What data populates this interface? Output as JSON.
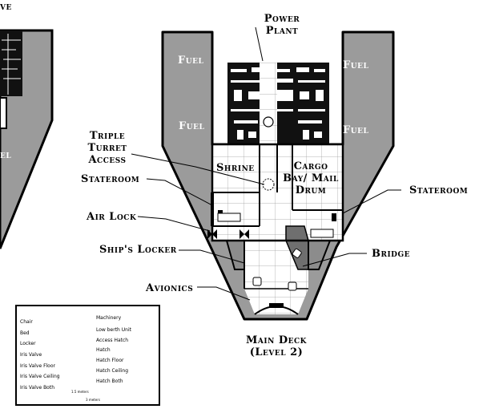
{
  "labels": {
    "fuel": "Fuel",
    "power_plant": [
      "Power",
      "Plant"
    ],
    "triple_turret_access": [
      "Triple",
      "Turret",
      "Access"
    ],
    "stateroom": "Stateroom",
    "air_lock": "Air Lock",
    "ships_locker": "Ship's Locker",
    "avionics": "Avionics",
    "shrine": "Shrine",
    "cargo": [
      "Cargo",
      "Bay/ Mail",
      "Drum"
    ],
    "bridge": "Bridge",
    "left_partial_top": "ve",
    "left_partial_fuel": "el",
    "deck_title": [
      "Main Deck",
      "(Level 2)"
    ]
  },
  "legend": {
    "left": [
      {
        "label": "Chair",
        "icon": "chair-icon"
      },
      {
        "label": "Bed",
        "icon": "bed-icon"
      },
      {
        "label": "Locker",
        "icon": "locker-icon"
      },
      {
        "label": "Iris Valve",
        "icon": "iris-valve-icon"
      },
      {
        "label": "Iris Valve Floor",
        "icon": "iris-valve-floor-icon"
      },
      {
        "label": "Iris Valve Ceiling",
        "icon": "iris-valve-ceiling-icon"
      },
      {
        "label": "Iris Valve Both",
        "icon": "iris-valve-both-icon"
      }
    ],
    "right": [
      {
        "label": "Machinery",
        "icon": "machinery-icon"
      },
      {
        "label": "Low berth Unit",
        "icon": "low-berth-icon"
      },
      {
        "label": "Access Hatch",
        "icon": "access-hatch-icon"
      },
      {
        "label": "Hatch",
        "icon": "hatch-icon"
      },
      {
        "label": "Hatch Floor",
        "icon": "hatch-floor-icon"
      },
      {
        "label": "Hatch Ceiling",
        "icon": "hatch-ceiling-icon"
      },
      {
        "label": "Hatch Both",
        "icon": "hatch-both-icon"
      }
    ],
    "scale": {
      "top": "1.5 meters",
      "bottom": "3 meters"
    }
  },
  "colors": {
    "hull": "#9b9b9b",
    "floor": "#ffffff",
    "wall": "#000000",
    "grid": "#999999",
    "nose": "#b0b0b0"
  }
}
